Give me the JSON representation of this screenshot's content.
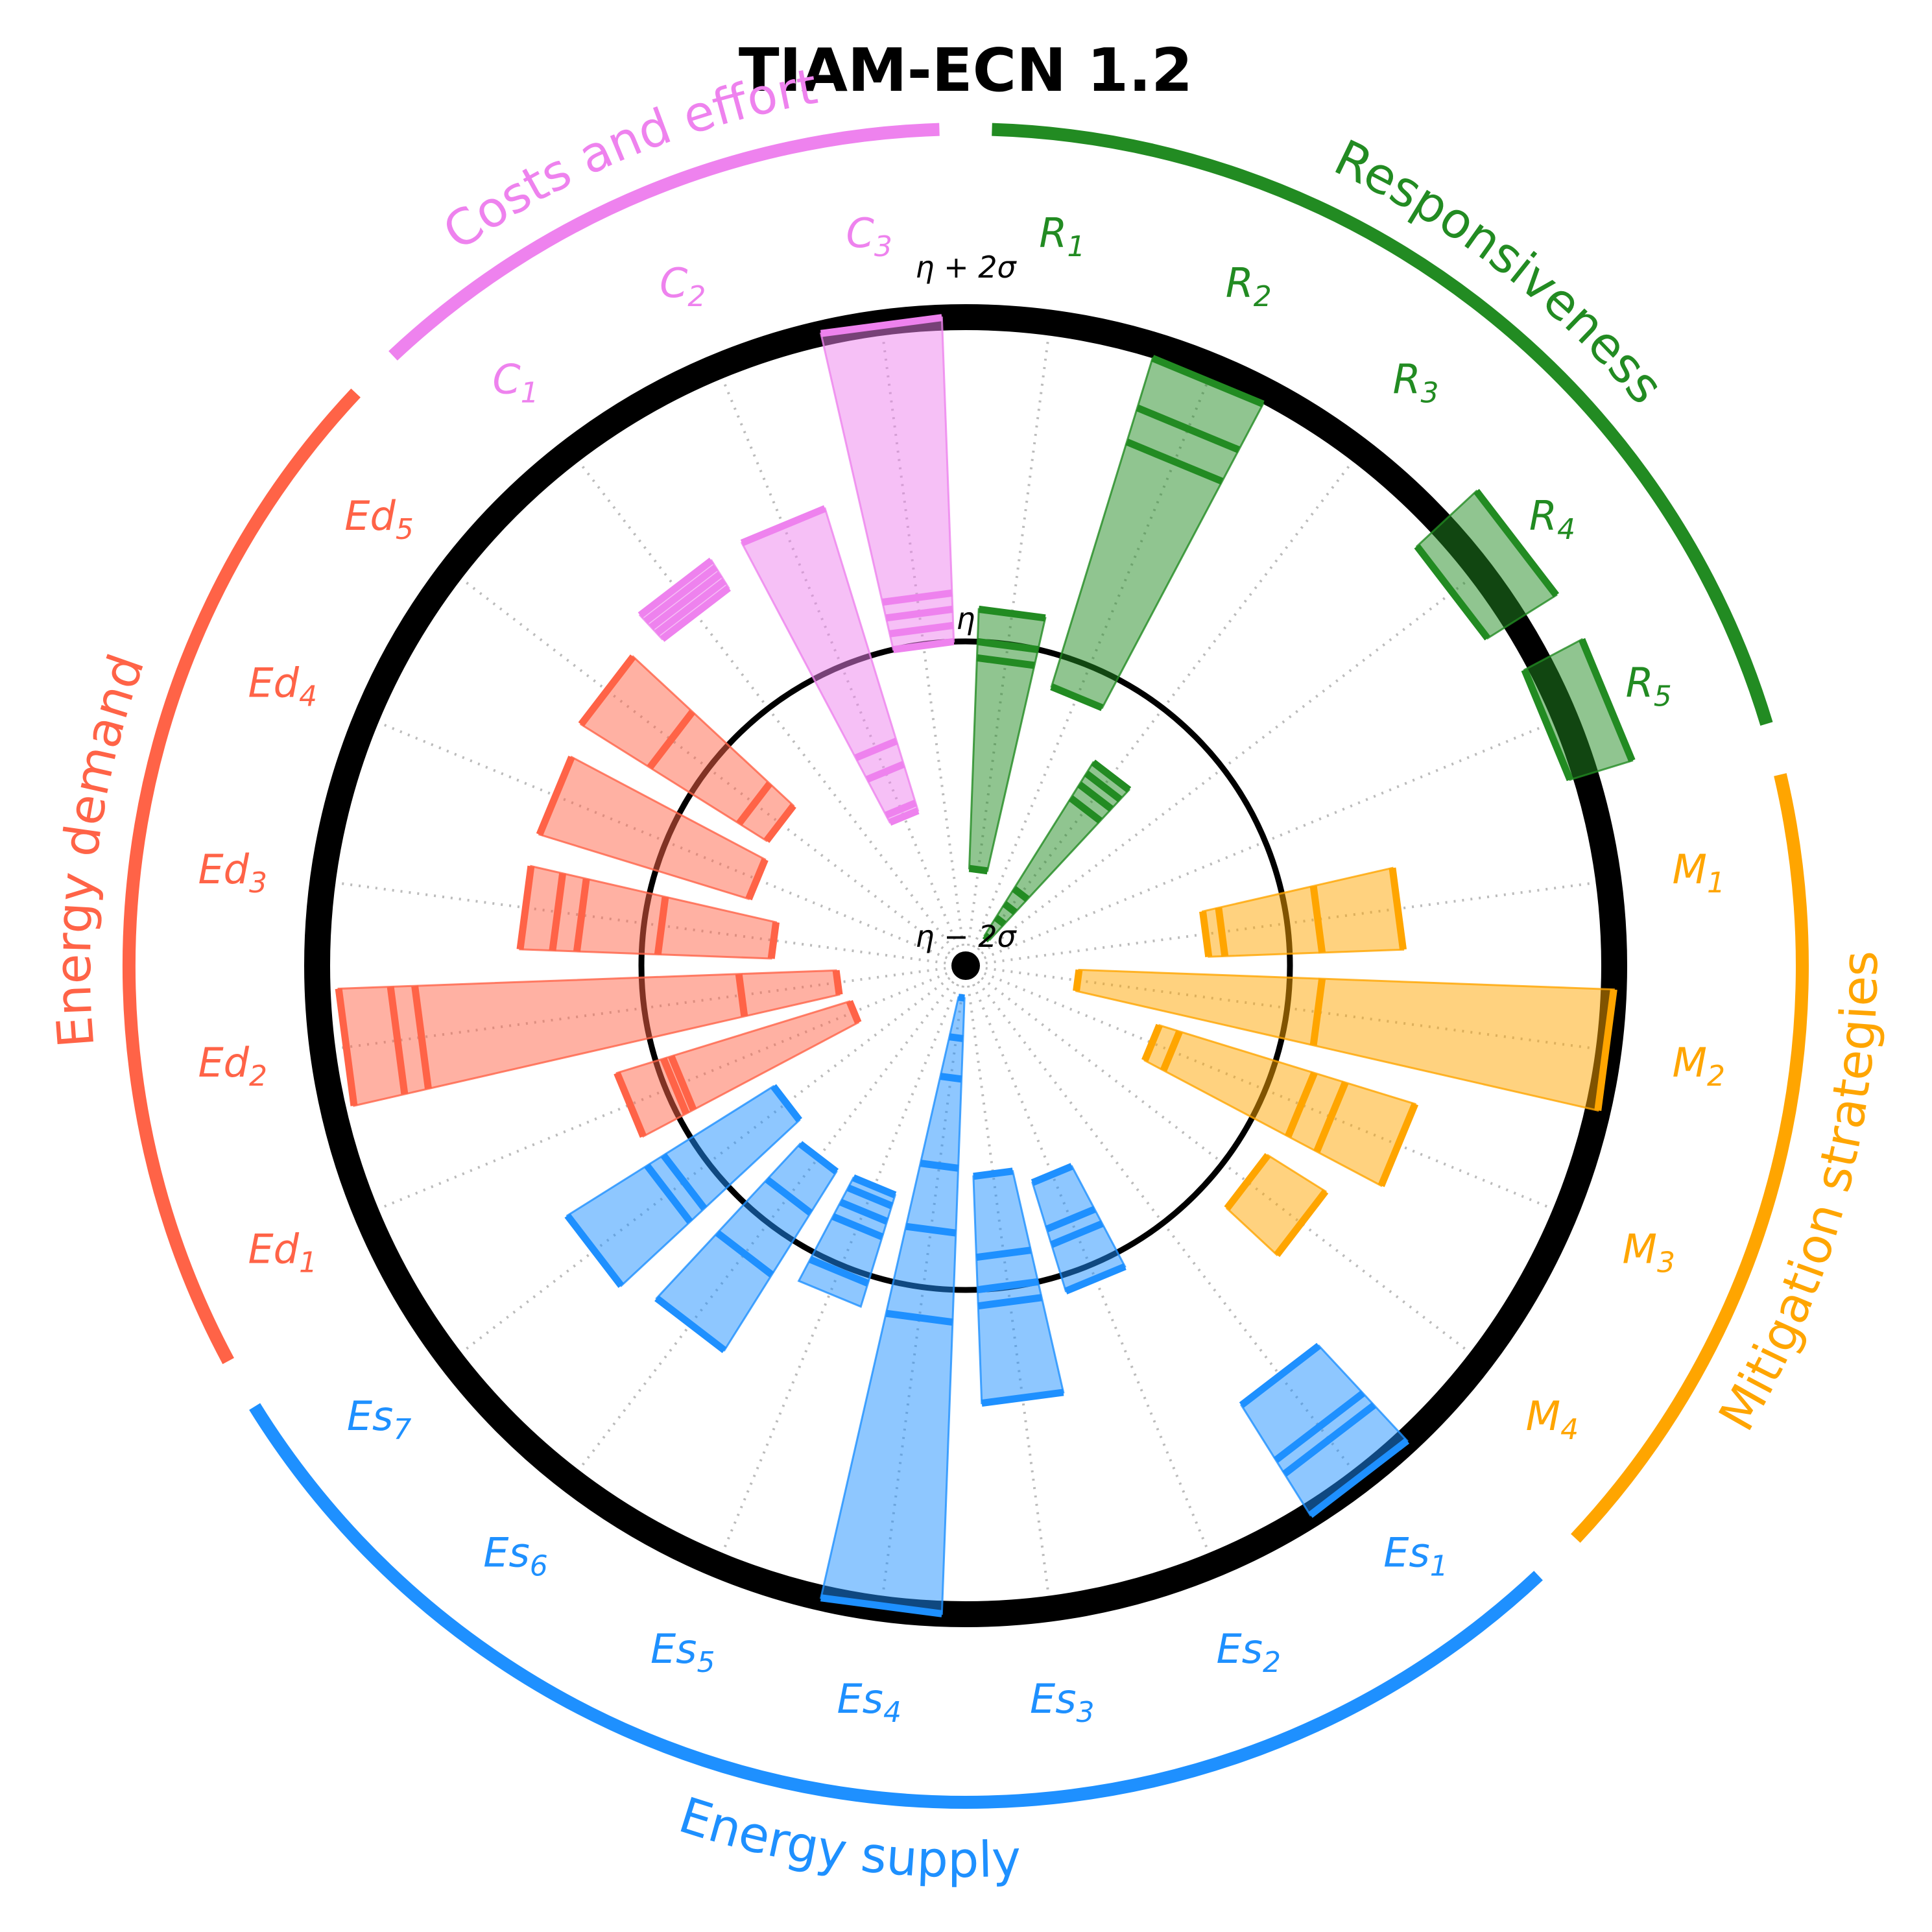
{
  "chart_data": {
    "type": "polar-range",
    "title": "TIAM-ECN 1.2",
    "ring_labels": {
      "outer": "η + 2σ",
      "middle": "η",
      "inner": "η − 2σ"
    },
    "scale": "standardized",
    "range": [
      -2,
      2
    ],
    "groups": [
      {
        "name": "Responsiveness",
        "color": "#228b22",
        "indicators": [
          {
            "label": "R1",
            "base": "R",
            "sub": "1",
            "min": -1.4,
            "max": 0.2,
            "marks": [
              -1.4,
              -0.1,
              0.0,
              0.2
            ]
          },
          {
            "label": "R2",
            "base": "R",
            "sub": "2",
            "min": -0.2,
            "max": 1.92,
            "marks": [
              -0.2,
              1.38,
              1.6,
              1.92
            ]
          },
          {
            "label": "R3",
            "base": "R",
            "sub": "3",
            "min": -1.78,
            "max": -0.52,
            "marks": [
              -1.78,
              -1.65,
              -1.55,
              -1.44,
              -0.78,
              -0.68,
              -0.6,
              -0.52
            ]
          },
          {
            "label": "R4",
            "base": "R",
            "sub": "4",
            "min": 1.8,
            "max": 2.3,
            "marks": [
              1.8,
              2.3
            ]
          },
          {
            "label": "R5",
            "base": "R",
            "sub": "5",
            "min": 1.9,
            "max": 2.3,
            "marks": [
              1.9,
              2.3
            ]
          }
        ]
      },
      {
        "name": "Mitigation strategies",
        "color": "#ffa500",
        "indicators": [
          {
            "label": "M1",
            "base": "M",
            "sub": "1",
            "min": -0.5,
            "max": 0.7,
            "marks": [
              -0.5,
              -0.4,
              0.2,
              0.7
            ]
          },
          {
            "label": "M2",
            "base": "M",
            "sub": "2",
            "min": -1.3,
            "max": 2.0,
            "marks": [
              -1.3,
              0.2,
              2.0
            ]
          },
          {
            "label": "M3",
            "base": "M",
            "sub": "3",
            "min": -0.75,
            "max": 0.9,
            "marks": [
              -0.75,
              -0.62,
              0.25,
              0.45,
              0.9
            ]
          },
          {
            "label": "M4",
            "base": "M",
            "sub": "4",
            "min": 0.2,
            "max": 0.62,
            "marks": [
              0.2,
              0.62
            ]
          }
        ]
      },
      {
        "name": "Energy supply",
        "color": "#1e90ff",
        "indicators": [
          {
            "label": "Es1",
            "base": "Es",
            "sub": "1",
            "min": 1.2,
            "max": 2.0,
            "marks": [
              1.2,
              1.6,
              1.7,
              2.0
            ]
          },
          {
            "label": "Es2",
            "base": "Es",
            "sub": "2",
            "min": -0.6,
            "max": 0.1,
            "marks": [
              -0.6,
              -0.3,
              -0.2,
              0.1
            ]
          },
          {
            "label": "Es3",
            "base": "Es",
            "sub": "3",
            "min": -0.7,
            "max": 0.7,
            "marks": [
              -0.7,
              -0.2,
              0.0,
              0.1,
              0.7
            ]
          },
          {
            "label": "Es4",
            "base": "Es",
            "sub": "4",
            "min": -1.8,
            "max": 2.0,
            "marks": [
              -1.8,
              -1.55,
              -1.3,
              -0.75,
              -0.35,
              0.2,
              2.0
            ]
          },
          {
            "label": "Es5",
            "base": "Es",
            "sub": "5",
            "min": -0.52,
            "max": 0.2,
            "marks": [
              -0.52,
              -0.45,
              -0.35,
              -0.25,
              0.05
            ]
          },
          {
            "label": "Es6",
            "base": "Es",
            "sub": "6",
            "min": -0.5,
            "max": 0.8,
            "marks": [
              -0.5,
              -0.2,
              0.25,
              0.8
            ]
          },
          {
            "label": "Es7",
            "base": "Es",
            "sub": "7",
            "min": -0.6,
            "max": 0.9,
            "marks": [
              -0.6,
              0.2,
              0.32,
              0.9
            ]
          }
        ]
      },
      {
        "name": "Energy demand",
        "color": "#ff6347",
        "indicators": [
          {
            "label": "Ed1",
            "base": "Ed",
            "sub": "1",
            "min": -1.25,
            "max": 0.25,
            "marks": [
              -1.25,
              -0.1,
              -0.05,
              0.25
            ]
          },
          {
            "label": "Ed2",
            "base": "Ed",
            "sub": "2",
            "min": -1.2,
            "max": 1.87,
            "marks": [
              -1.2,
              -0.6,
              1.4,
              1.55,
              1.87
            ]
          },
          {
            "label": "Ed3",
            "base": "Ed",
            "sub": "3",
            "min": -0.8,
            "max": 0.75,
            "marks": [
              -0.8,
              -0.1,
              0.4,
              0.55,
              0.75
            ]
          },
          {
            "label": "Ed4",
            "base": "Ed",
            "sub": "4",
            "min": -0.6,
            "max": 0.75,
            "marks": [
              -0.6,
              0.75
            ]
          },
          {
            "label": "Ed5",
            "base": "Ed",
            "sub": "5",
            "min": -0.55,
            "max": 0.8,
            "marks": [
              -0.55,
              -0.35,
              0.3,
              0.8
            ]
          }
        ]
      },
      {
        "name": "Costs and effort",
        "color": "#ee82ee",
        "indicators": [
          {
            "label": "C1",
            "base": "C",
            "sub": "1",
            "min": 0.75,
            "max": 0.95,
            "marks": [
              0.75,
              0.8,
              0.85,
              0.9,
              0.95
            ]
          },
          {
            "label": "C2",
            "base": "C",
            "sub": "2",
            "min": -1.0,
            "max": 0.95,
            "marks": [
              -1.0,
              -0.95,
              -0.7,
              -0.55,
              0.95
            ]
          },
          {
            "label": "C3",
            "base": "C",
            "sub": "3",
            "min": 0.0,
            "max": 2.0,
            "marks": [
              0.0,
              0.1,
              0.2,
              0.3,
              2.0
            ]
          }
        ]
      }
    ]
  }
}
